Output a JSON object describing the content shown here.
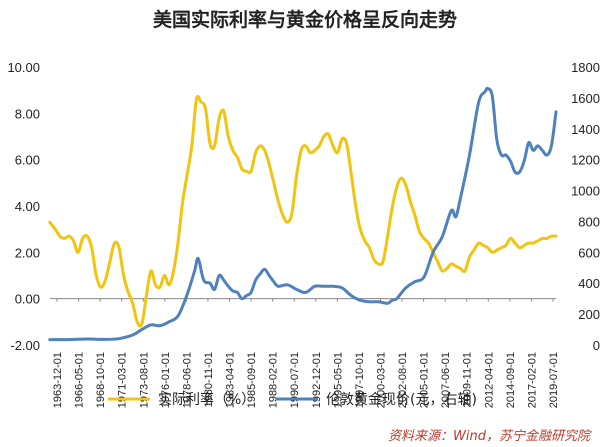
{
  "chart_data": {
    "type": "line",
    "title": "美国实际利率与黄金价格呈反向走势",
    "source": "资料来源：Wind，苏宁金融研究院",
    "y_left": {
      "ylim": [
        -2,
        10
      ],
      "ticks": [
        "-2.00",
        "0.00",
        "2.00",
        "4.00",
        "6.00",
        "8.00",
        "10.00"
      ]
    },
    "y_right": {
      "ylim": [
        0,
        1800
      ],
      "ticks": [
        "0",
        "200",
        "400",
        "600",
        "800",
        "1000",
        "1200",
        "1400",
        "1600",
        "1800"
      ]
    },
    "x_range": [
      1963.92,
      2019.5
    ],
    "x_ticks": [
      "1963-12-01",
      "1966-05-01",
      "1968-10-01",
      "1971-03-01",
      "1973-08-01",
      "1976-01-01",
      "1978-06-01",
      "1980-11-01",
      "1983-04-01",
      "1985-09-01",
      "1988-02-01",
      "1990-07-01",
      "1992-12-01",
      "1995-05-01",
      "1997-10-01",
      "2000-03-01",
      "2002-08-01",
      "2005-01-01",
      "2007-06-01",
      "2009-11-01",
      "2012-04-01",
      "2014-09-01",
      "2017-02-01",
      "2019-07-01"
    ],
    "series": [
      {
        "name": "实际利率（%）",
        "axis": "left",
        "color": "#f2c40f",
        "x": [
          1963.9,
          1964.5,
          1965.0,
          1965.5,
          1966.0,
          1966.5,
          1967.0,
          1967.5,
          1968.0,
          1968.5,
          1969.0,
          1969.5,
          1970.0,
          1970.5,
          1971.0,
          1971.5,
          1972.0,
          1972.5,
          1973.0,
          1973.5,
          1974.0,
          1974.5,
          1975.0,
          1975.5,
          1976.0,
          1976.5,
          1977.0,
          1977.5,
          1978.0,
          1978.5,
          1979.0,
          1979.5,
          1980.0,
          1980.5,
          1981.0,
          1981.5,
          1982.0,
          1982.5,
          1983.0,
          1983.5,
          1984.0,
          1984.5,
          1985.0,
          1985.5,
          1986.0,
          1986.5,
          1987.0,
          1987.5,
          1988.0,
          1988.5,
          1989.0,
          1989.5,
          1990.0,
          1990.5,
          1991.0,
          1991.5,
          1992.0,
          1992.5,
          1993.0,
          1993.5,
          1994.0,
          1994.5,
          1995.0,
          1995.5,
          1996.0,
          1996.5,
          1997.0,
          1997.5,
          1998.0,
          1998.5,
          1999.0,
          1999.5,
          2000.0,
          2000.5,
          2001.0,
          2001.5,
          2002.0,
          2002.5,
          2003.0,
          2003.5,
          2004.0,
          2004.5,
          2005.0,
          2005.5,
          2006.0,
          2006.5,
          2007.0,
          2007.5,
          2008.0,
          2008.5,
          2009.0,
          2009.5,
          2010.0,
          2010.5,
          2011.0,
          2011.5,
          2012.0,
          2012.5,
          2013.0,
          2013.5,
          2014.0,
          2014.5,
          2015.0,
          2015.5,
          2016.0,
          2016.5,
          2017.0,
          2017.5,
          2018.0,
          2018.5,
          2019.0,
          2019.5
        ],
        "values": [
          3.3,
          3.0,
          2.7,
          2.6,
          2.7,
          2.5,
          2.0,
          2.6,
          2.7,
          2.2,
          1.0,
          0.5,
          0.8,
          1.6,
          2.4,
          2.2,
          1.0,
          0.3,
          -0.2,
          -1.0,
          -1.1,
          0.1,
          1.2,
          0.6,
          0.5,
          1.0,
          0.6,
          1.2,
          2.5,
          4.2,
          5.4,
          6.6,
          8.6,
          8.5,
          8.2,
          6.7,
          6.6,
          7.8,
          8.1,
          7.0,
          6.4,
          6.1,
          5.6,
          5.5,
          5.5,
          6.3,
          6.6,
          6.4,
          5.8,
          5.0,
          4.2,
          3.6,
          3.3,
          3.7,
          5.3,
          6.4,
          6.6,
          6.3,
          6.4,
          6.6,
          7.0,
          7.1,
          6.6,
          6.3,
          6.9,
          6.7,
          5.4,
          4.0,
          3.0,
          2.5,
          2.2,
          1.7,
          1.5,
          1.6,
          2.7,
          3.9,
          4.8,
          5.2,
          4.9,
          4.2,
          3.6,
          2.9,
          2.6,
          2.4,
          2.0,
          1.6,
          1.2,
          1.3,
          1.5,
          1.4,
          1.3,
          1.2,
          1.8,
          2.1,
          2.4,
          2.3,
          2.2,
          2.0,
          2.1,
          2.2,
          2.3,
          2.6,
          2.4,
          2.2,
          2.3,
          2.4,
          2.4,
          2.5,
          2.6,
          2.6,
          2.7,
          2.7
        ]
      },
      {
        "name": "伦敦黄金现价(元，右轴)",
        "axis": "right",
        "color": "#4f81bd",
        "x": [
          1963.9,
          1966.0,
          1968.0,
          1970.0,
          1971.5,
          1973.0,
          1974.0,
          1975.0,
          1976.0,
          1977.0,
          1978.0,
          1979.0,
          1979.8,
          1980.2,
          1980.8,
          1981.5,
          1982.0,
          1982.5,
          1983.0,
          1983.5,
          1984.0,
          1984.5,
          1985.0,
          1985.5,
          1986.0,
          1986.5,
          1987.0,
          1987.5,
          1988.0,
          1988.5,
          1989.0,
          1990.0,
          1991.0,
          1992.0,
          1993.0,
          1994.0,
          1995.0,
          1996.0,
          1997.0,
          1998.0,
          1999.0,
          2000.0,
          2001.0,
          2001.5,
          2002.0,
          2003.0,
          2004.0,
          2005.0,
          2006.0,
          2007.0,
          2008.0,
          2008.5,
          2009.0,
          2010.0,
          2011.0,
          2011.7,
          2012.0,
          2012.5,
          2013.0,
          2013.5,
          2014.0,
          2014.5,
          2015.0,
          2015.5,
          2016.0,
          2016.5,
          2017.0,
          2017.5,
          2018.0,
          2018.5,
          2019.0,
          2019.5
        ],
        "values": [
          35,
          35,
          39,
          36,
          41,
          65,
          100,
          130,
          125,
          150,
          190,
          330,
          480,
          560,
          420,
          400,
          360,
          450,
          420,
          380,
          350,
          340,
          300,
          320,
          340,
          420,
          460,
          490,
          450,
          410,
          380,
          390,
          360,
          340,
          380,
          380,
          380,
          370,
          320,
          290,
          280,
          280,
          270,
          290,
          300,
          370,
          410,
          440,
          600,
          700,
          870,
          830,
          950,
          1230,
          1570,
          1640,
          1660,
          1610,
          1330,
          1230,
          1230,
          1190,
          1120,
          1120,
          1190,
          1310,
          1260,
          1290,
          1260,
          1230,
          1290,
          1510
        ]
      }
    ]
  }
}
